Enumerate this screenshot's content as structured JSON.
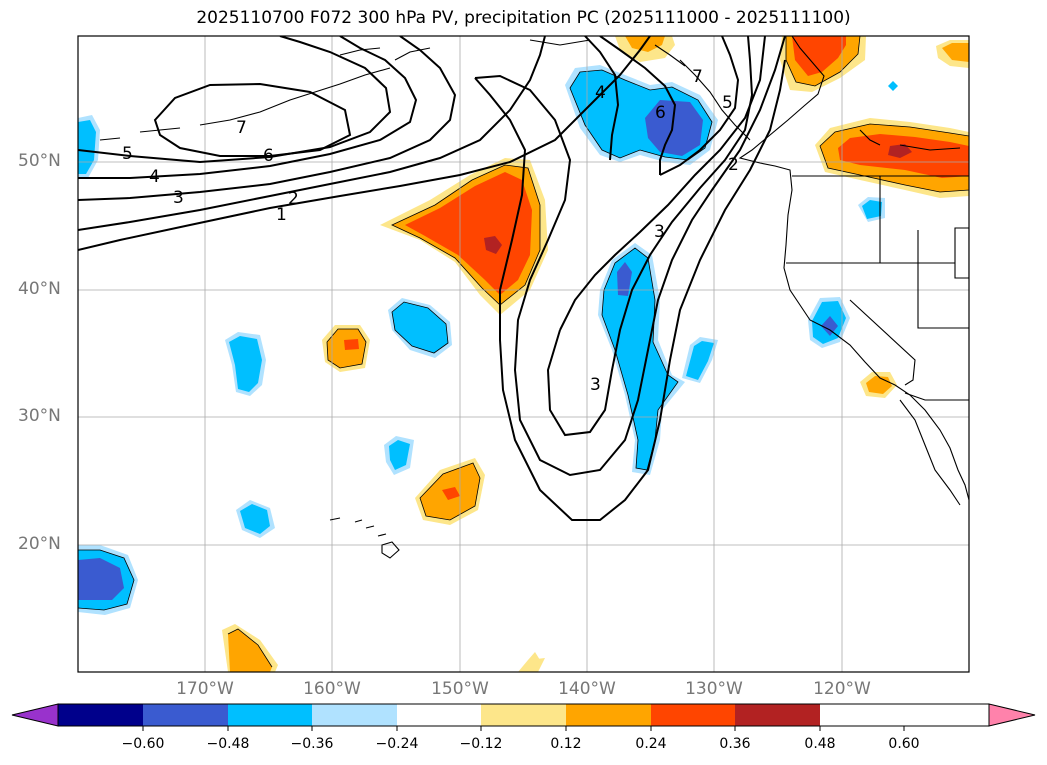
{
  "title": "2025110700 F072 300 hPa PV, precipitation PC (2025111000 - 2025111100)",
  "map": {
    "lon_labels": [
      "170°W",
      "160°W",
      "150°W",
      "140°W",
      "130°W",
      "120°W"
    ],
    "lat_labels": [
      "50°N",
      "40°N",
      "30°N",
      "20°N"
    ],
    "pv_contour_labels": [
      "1",
      "2",
      "3",
      "4",
      "5",
      "6",
      "7",
      "3",
      "3",
      "4",
      "5",
      "6",
      "7",
      "2"
    ]
  },
  "colorbar": {
    "tick_labels": [
      "−0.60",
      "−0.48",
      "−0.36",
      "−0.24",
      "−0.12",
      "0.12",
      "0.24",
      "0.36",
      "0.48",
      "0.60"
    ],
    "colors": [
      "#9932cc",
      "#00008b",
      "#3a5bd0",
      "#00bfff",
      "#b0e2ff",
      "#ffffff",
      "#fde68a",
      "#ffa500",
      "#ff4500",
      "#b22222",
      "#ff82ab"
    ]
  }
}
